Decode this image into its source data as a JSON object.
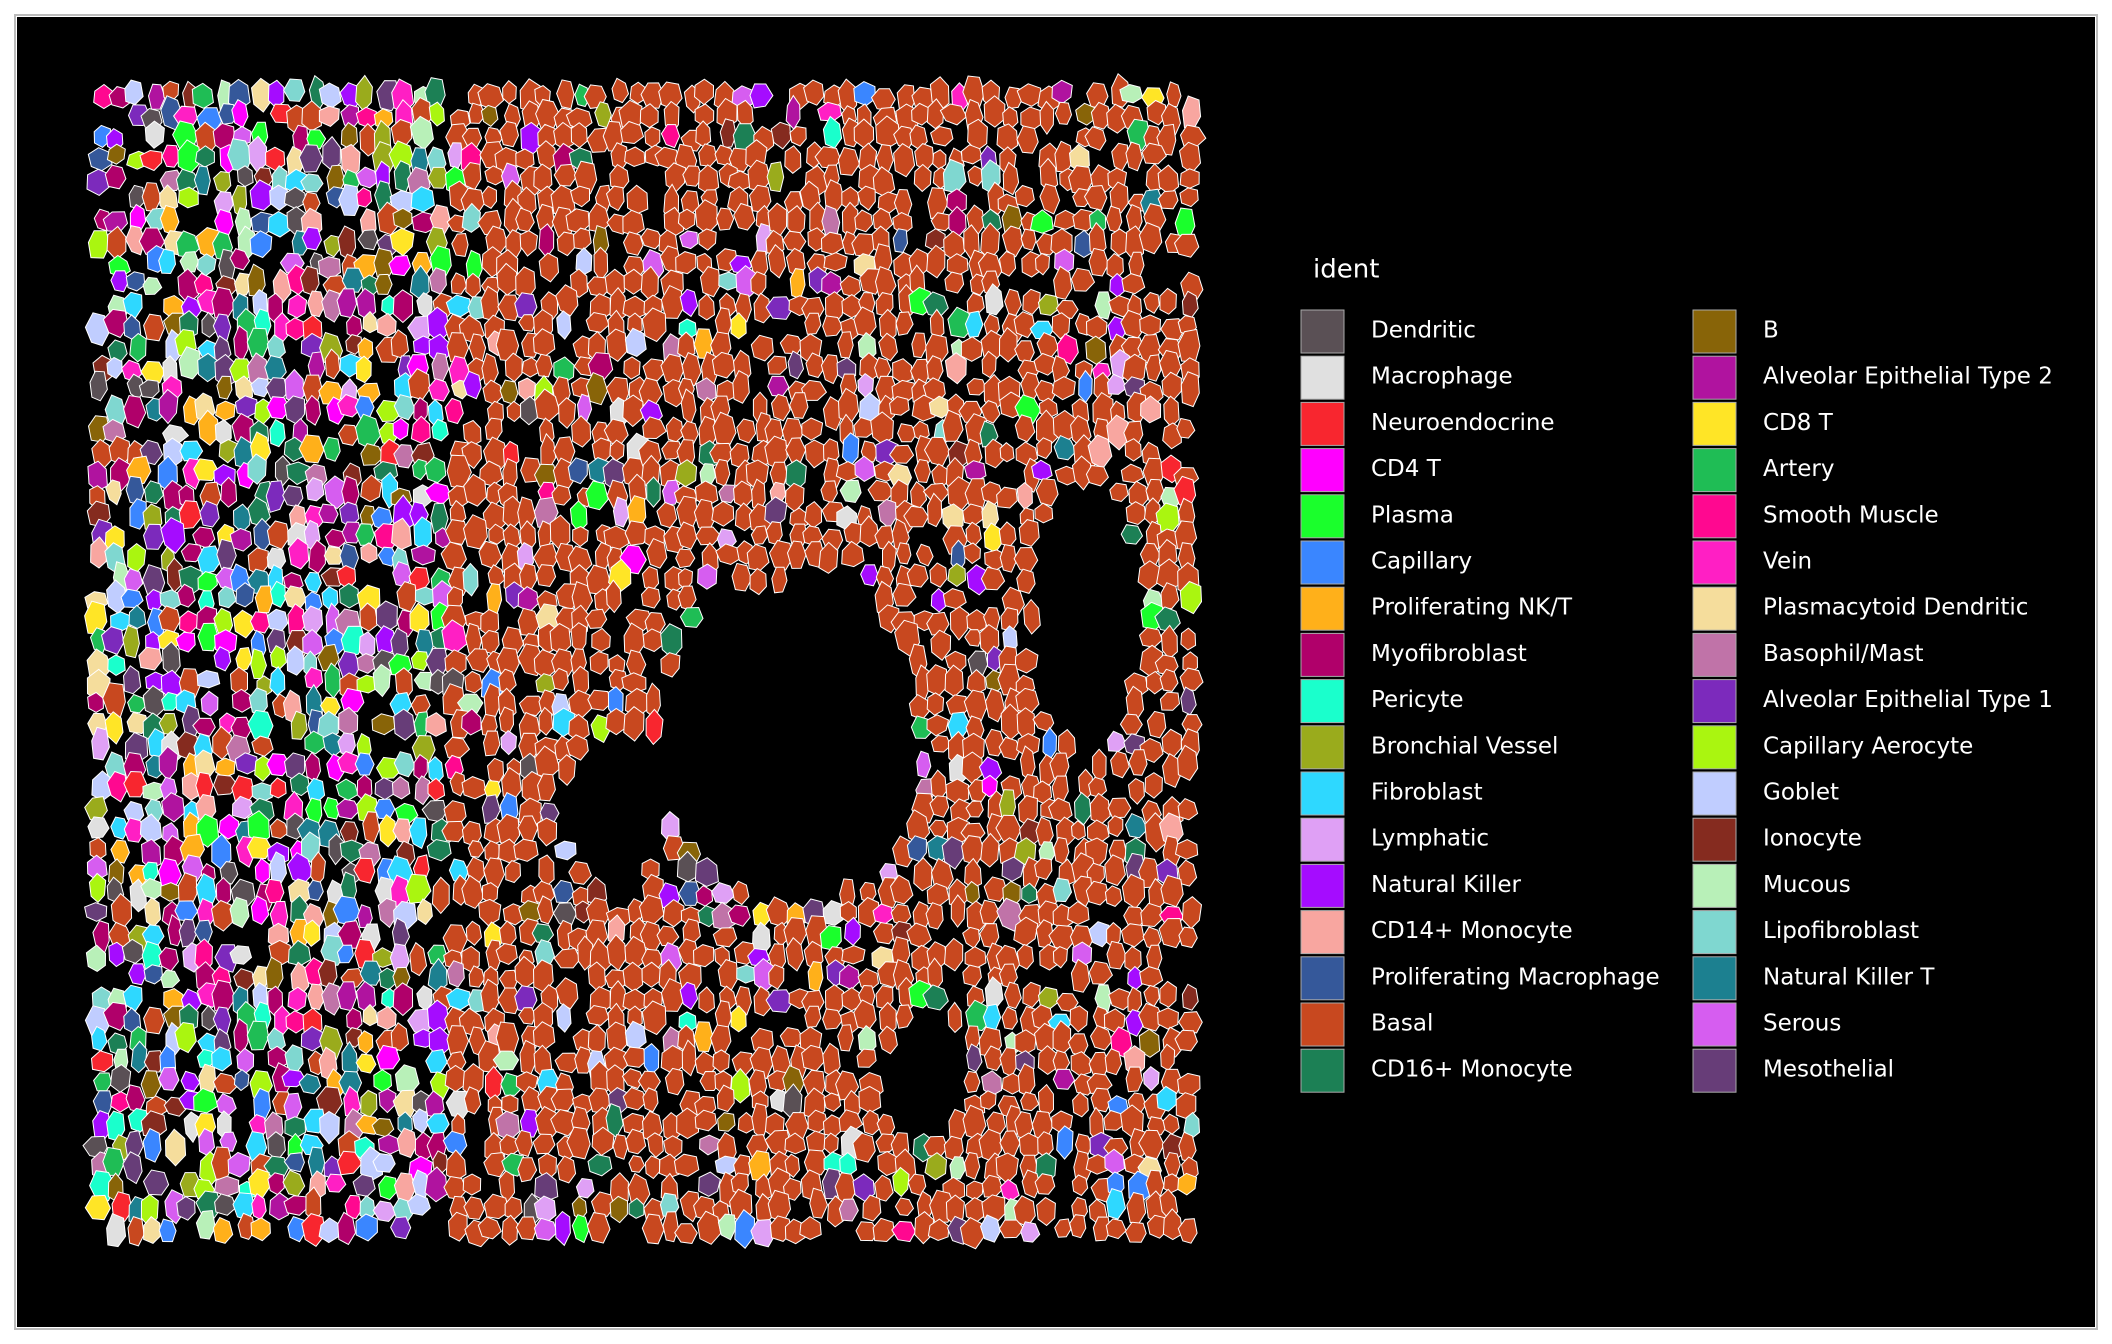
{
  "chart_data": {
    "type": "spatial",
    "legend_title": "ident",
    "series": [
      {
        "name": "Dendritic",
        "color": "#5a5055"
      },
      {
        "name": "Macrophage",
        "color": "#e0e0e0"
      },
      {
        "name": "Neuroendocrine",
        "color": "#f8262f"
      },
      {
        "name": "CD4 T",
        "color": "#ff00ff"
      },
      {
        "name": "Plasma",
        "color": "#1aff2c"
      },
      {
        "name": "Capillary",
        "color": "#3a86ff"
      },
      {
        "name": "Proliferating NK/T",
        "color": "#ffb01a"
      },
      {
        "name": "Myofibroblast",
        "color": "#b0006a"
      },
      {
        "name": "Pericyte",
        "color": "#1affcc"
      },
      {
        "name": "Bronchial Vessel",
        "color": "#9aab1c"
      },
      {
        "name": "Fibroblast",
        "color": "#2ed8ff"
      },
      {
        "name": "Lymphatic",
        "color": "#dfa0f5"
      },
      {
        "name": "Natural Killer",
        "color": "#a50cff"
      },
      {
        "name": "CD14+ Monocyte",
        "color": "#f8a6a0"
      },
      {
        "name": "Proliferating Macrophage",
        "color": "#35589a"
      },
      {
        "name": "Basal",
        "color": "#c8481f"
      },
      {
        "name": "CD16+ Monocyte",
        "color": "#1c8055"
      },
      {
        "name": "B",
        "color": "#886408"
      },
      {
        "name": "Alveolar Epithelial Type 2",
        "color": "#b0139f"
      },
      {
        "name": "CD8 T",
        "color": "#ffe526"
      },
      {
        "name": "Artery",
        "color": "#1fbd55"
      },
      {
        "name": "Smooth Muscle",
        "color": "#ff0890"
      },
      {
        "name": "Vein",
        "color": "#ff1fc4"
      },
      {
        "name": "Plasmacytoid Dendritic",
        "color": "#f5dd9c"
      },
      {
        "name": "Basophil/Mast",
        "color": "#c073a8"
      },
      {
        "name": "Alveolar Epithelial Type 1",
        "color": "#7c2abc"
      },
      {
        "name": "Capillary Aerocyte",
        "color": "#aaf510"
      },
      {
        "name": "Goblet",
        "color": "#c0cdff"
      },
      {
        "name": "Ionocyte",
        "color": "#852b1f"
      },
      {
        "name": "Mucous",
        "color": "#b8f0b8"
      },
      {
        "name": "Lipofibroblast",
        "color": "#7fd7d0"
      },
      {
        "name": "Natural Killer T",
        "color": "#1c8090"
      },
      {
        "name": "Serous",
        "color": "#d65df0"
      },
      {
        "name": "Mesothelial",
        "color": "#673d78"
      }
    ]
  }
}
